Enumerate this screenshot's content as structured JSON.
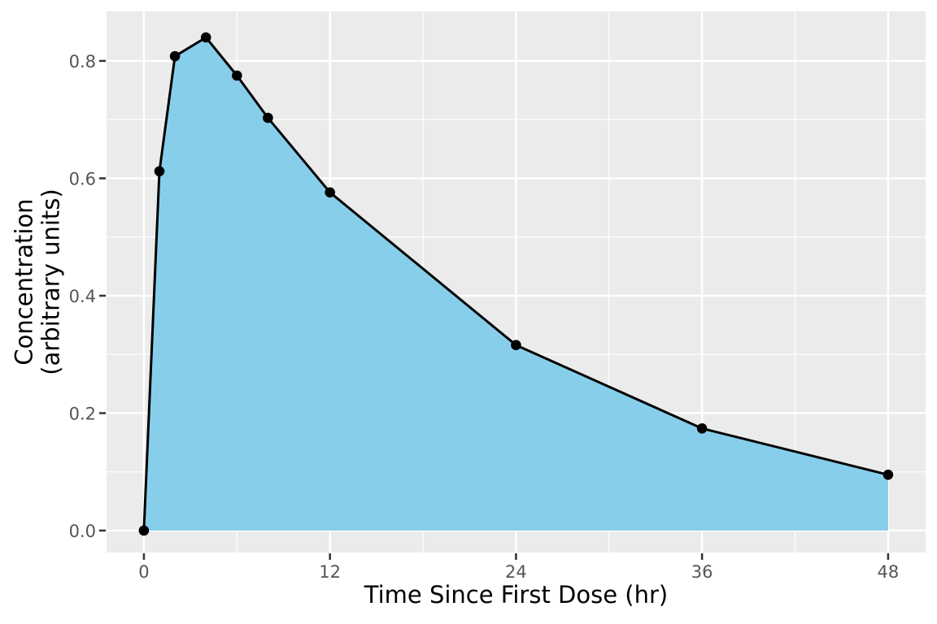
{
  "chart_data": {
    "type": "area",
    "title": "",
    "xlabel": "Time Since First Dose (hr)",
    "ylabel_lines": [
      "Concentration",
      "(arbitrary units)"
    ],
    "x": [
      0,
      1,
      2,
      4,
      6,
      8,
      12,
      24,
      36,
      48
    ],
    "y": [
      0.0,
      0.612,
      0.808,
      0.84,
      0.775,
      0.703,
      0.576,
      0.316,
      0.174,
      0.095
    ],
    "x_ticks": {
      "values": [
        0,
        12,
        24,
        36,
        48
      ],
      "labels": [
        "0",
        "12",
        "24",
        "36",
        "48"
      ]
    },
    "y_ticks": {
      "values": [
        0.0,
        0.2,
        0.4,
        0.6,
        0.8
      ],
      "labels": [
        "0.0",
        "0.2",
        "0.4",
        "0.6",
        "0.8"
      ]
    },
    "x_minor": [
      6,
      18,
      30,
      42
    ],
    "y_minor": [
      0.1,
      0.3,
      0.5,
      0.7
    ],
    "xlim": [
      -2.41,
      50.42
    ],
    "ylim": [
      -0.0374,
      0.8844
    ],
    "grid": "on",
    "legend": "none",
    "baseline": 0,
    "colors": {
      "area_fill": "#87CEEB",
      "line": "#000000",
      "marker": "#000000",
      "panel_bg": "#EBEBEB",
      "grid": "#FFFFFF",
      "tick_label": "#555555",
      "axis_title": "#000000",
      "tick_mark": "#333333",
      "figure_bg": "#FFFFFF"
    }
  }
}
